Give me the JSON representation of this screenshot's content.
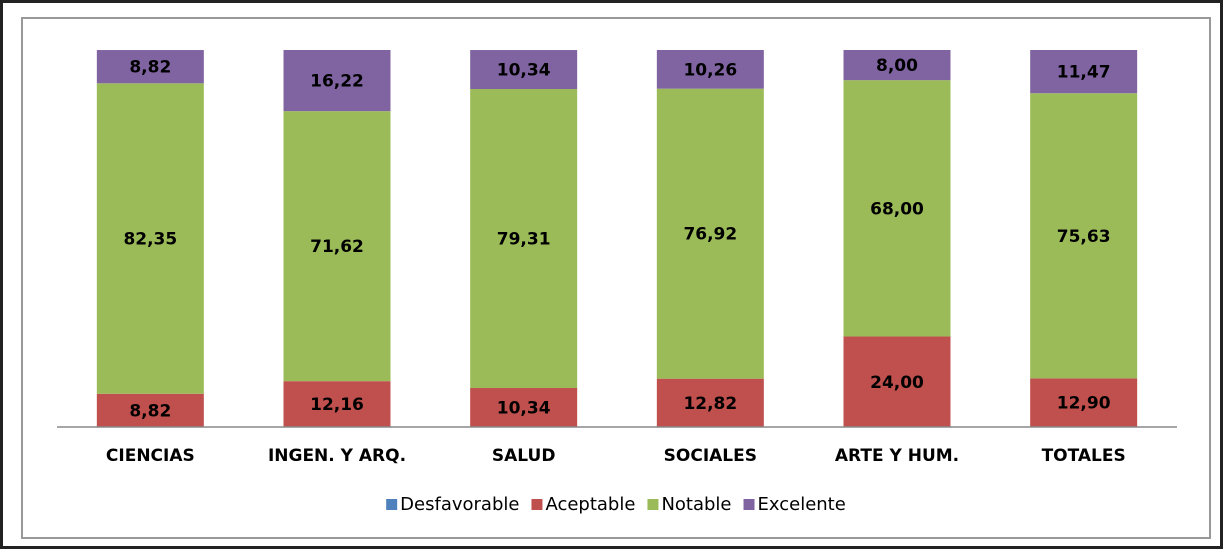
{
  "chart_data": {
    "type": "stacked_bar",
    "categories": [
      "CIENCIAS",
      "INGEN. Y ARQ.",
      "SALUD",
      "SOCIALES",
      "ARTE Y HUM.",
      "TOTALES"
    ],
    "series": [
      {
        "name": "Desfavorable",
        "color": "#4f81bd",
        "values": [
          0,
          0,
          0,
          0,
          0,
          0
        ]
      },
      {
        "name": "Aceptable",
        "color": "#c0504d",
        "values": [
          8.82,
          12.16,
          10.34,
          12.82,
          24.0,
          12.9
        ],
        "value_labels": [
          "8,82",
          "12,16",
          "10,34",
          "12,82",
          "24,00",
          "12,90"
        ]
      },
      {
        "name": "Notable",
        "color": "#9bbb59",
        "values": [
          82.35,
          71.62,
          79.31,
          76.92,
          68.0,
          75.63
        ],
        "value_labels": [
          "82,35",
          "71,62",
          "79,31",
          "76,92",
          "68,00",
          "75,63"
        ]
      },
      {
        "name": "Excelente",
        "color": "#8064a2",
        "values": [
          8.82,
          16.22,
          10.34,
          10.26,
          8.0,
          11.47
        ],
        "value_labels": [
          "8,82",
          "16,22",
          "10,34",
          "10,26",
          "8,00",
          "11,47"
        ]
      }
    ],
    "legend": "bottom"
  }
}
